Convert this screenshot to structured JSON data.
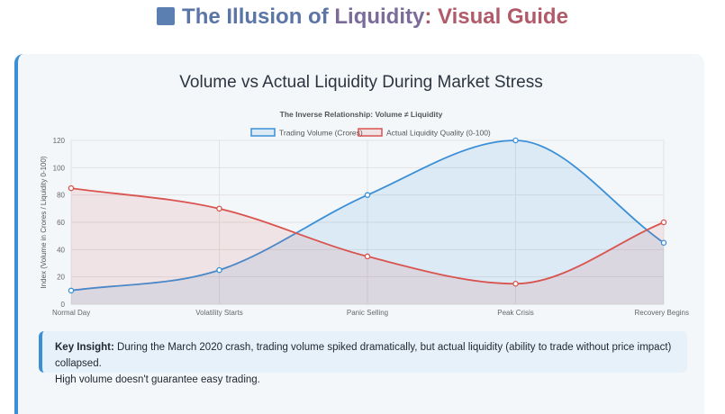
{
  "header": {
    "title_part1": "The Illusion of ",
    "title_part2": "Liquidity",
    "title_part3": ": Visual Guide",
    "icon": "square-chart-icon"
  },
  "card": {
    "title": "Volume vs Actual Liquidity During Market Stress"
  },
  "insight": {
    "label": "Key Insight:",
    "text": "During the March 2020 crash, trading volume spiked dramatically, but actual liquidity (ability to trade without price impact) collapsed.",
    "text2": "High volume doesn't guarantee easy trading."
  },
  "chart_data": {
    "type": "line",
    "title": "The Inverse Relationship: Volume ≠ Liquidity",
    "xlabel": "",
    "ylabel": "Index (Volume in Crores / Liquidity 0-100)",
    "categories": [
      "Normal Day",
      "Volatility Starts",
      "Panic Selling",
      "Peak Crisis",
      "Recovery Begins"
    ],
    "ylim": [
      0,
      120
    ],
    "yticks": [
      0,
      20,
      40,
      60,
      80,
      100,
      120
    ],
    "grid": true,
    "legend": "top",
    "series": [
      {
        "name": "Trading Volume (Crores)",
        "values": [
          10,
          25,
          80,
          120,
          45
        ],
        "color": "#3a8fd6",
        "fill": "rgba(58,143,214,0.13)"
      },
      {
        "name": "Actual Liquidity Quality (0-100)",
        "values": [
          85,
          70,
          35,
          15,
          60
        ],
        "color": "#d9534f",
        "fill": "rgba(217,83,79,0.12)"
      }
    ]
  }
}
